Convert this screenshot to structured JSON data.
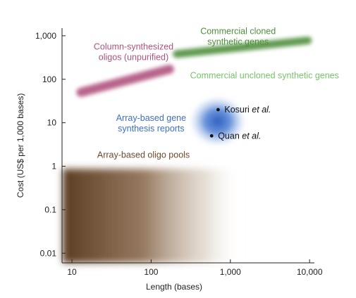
{
  "chart_data": {
    "type": "scatter",
    "title": "",
    "xlabel": "Length (bases)",
    "ylabel": "Cost (US$ per 1,000 bases)",
    "x_scale": "log",
    "y_scale": "log",
    "xlim": [
      7.5,
      11500
    ],
    "ylim": [
      0.006,
      1500
    ],
    "x_ticks": [
      {
        "value": 10,
        "label": "10"
      },
      {
        "value": 100,
        "label": "100"
      },
      {
        "value": 1000,
        "label": "1,000"
      },
      {
        "value": 10000,
        "label": "10,000"
      }
    ],
    "y_ticks": [
      {
        "value": 0.01,
        "label": "0.01"
      },
      {
        "value": 0.1,
        "label": "0.1"
      },
      {
        "value": 1,
        "label": "1"
      },
      {
        "value": 10,
        "label": "10"
      },
      {
        "value": 100,
        "label": "100"
      },
      {
        "value": 1000,
        "label": "1,000"
      }
    ],
    "grid": false,
    "regions": [
      {
        "name": "Column-synthesized oligos (unpurified)",
        "label_lines": [
          "Column-synthesized",
          "oligos (unpurified)"
        ],
        "shape": "band",
        "x_start": 13,
        "y_start": 50,
        "x_end": 170,
        "y_end": 170,
        "color": "#b0527f",
        "label_x": 60,
        "label_y": 480
      },
      {
        "name": "Commercial cloned synthetic genes",
        "label_lines": [
          "Commercial cloned",
          "synthetic genes"
        ],
        "shape": "band",
        "x_start": 210,
        "y_start": 380,
        "x_end": 9500,
        "y_end": 780,
        "color": "#4f8f3e",
        "label_x": 1250,
        "label_y": 1100
      },
      {
        "name": "Commercial uncloned synthetic genes",
        "label_lines": [
          "Commercial uncloned synthetic genes"
        ],
        "shape": "band",
        "x_start": 210,
        "y_start": 200,
        "x_end": 3800,
        "y_end": 200,
        "color": "#78c26a",
        "label_x": 2700,
        "label_y": 105
      },
      {
        "name": "Array-based gene synthesis reports",
        "label_lines": [
          "Array-based gene",
          "synthesis reports"
        ],
        "shape": "blob",
        "x_center": 750,
        "y_center": 10,
        "color": "#3e6fc4",
        "label_x": 100,
        "label_y": 11
      },
      {
        "name": "Array-based oligo pools",
        "label_lines": [
          "Array-based oligo pools"
        ],
        "shape": "area",
        "x_range": [
          7.5,
          220
        ],
        "y_range": [
          0.006,
          0.6
        ],
        "color": "#6a4a2c",
        "label_x": 80,
        "label_y": 1.55
      }
    ],
    "points": [
      {
        "name": "Kosuri",
        "suffix": " et al.",
        "x": 700,
        "y": 20
      },
      {
        "name": "Quan",
        "suffix": " et al.",
        "x": 580,
        "y": 5
      }
    ]
  }
}
